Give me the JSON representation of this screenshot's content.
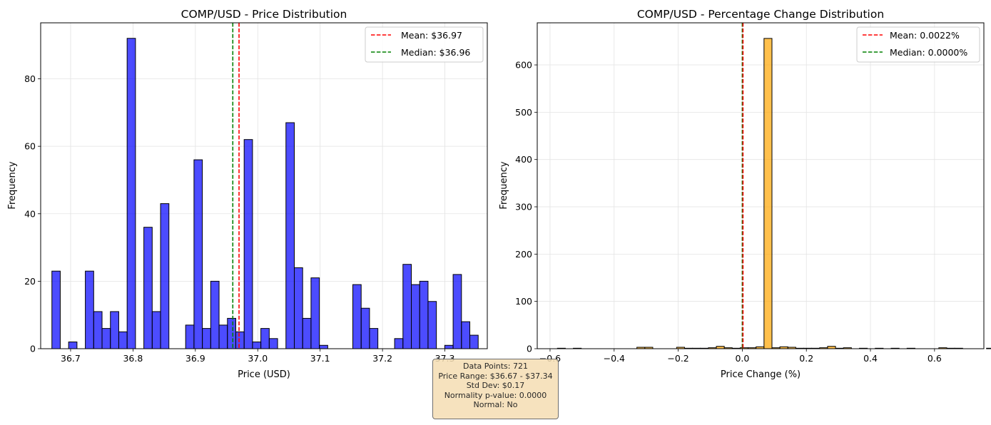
{
  "colors": {
    "left_bar": "#0000ff",
    "right_bar": "#ffa500",
    "edge": "#000000",
    "mean": "#ff0000",
    "median": "#008000",
    "grid": "#e3e3e3"
  },
  "chart_data": [
    {
      "type": "bar",
      "title": "COMP/USD - Price Distribution",
      "xlabel": "Price (USD)",
      "ylabel": "Frequency",
      "xlim": [
        36.652,
        37.368
      ],
      "ylim": [
        0,
        96.6
      ],
      "xticks": [
        "36.7",
        "36.8",
        "36.9",
        "37.0",
        "37.1",
        "37.2",
        "37.3"
      ],
      "yticks": [
        "0",
        "20",
        "40",
        "60",
        "80"
      ],
      "bin_width": 0.0134,
      "bin_start": 36.67,
      "counts": [
        23,
        0,
        2,
        0,
        23,
        11,
        6,
        11,
        5,
        92,
        0,
        36,
        11,
        43,
        0,
        0,
        7,
        56,
        6,
        20,
        7,
        9,
        5,
        62,
        2,
        6,
        3,
        0,
        67,
        24,
        9,
        21,
        1,
        0,
        0,
        0,
        19,
        12,
        6,
        0,
        0,
        3,
        25,
        19,
        20,
        14,
        0,
        1,
        22,
        8,
        4
      ],
      "mean": 36.97,
      "median": 36.96,
      "legend": {
        "placement": "upper-right",
        "mean_label": "Mean: $36.97",
        "median_label": "Median: $36.96"
      },
      "grid": true
    },
    {
      "type": "bar",
      "title": "COMP/USD - Percentage Change Distribution",
      "xlabel": "Price Change (%)",
      "ylabel": "Frequency",
      "xlim": [
        -0.64,
        0.754
      ],
      "ylim": [
        0,
        689
      ],
      "xticks": [
        "−0.6",
        "−0.4",
        "−0.2",
        "0.0",
        "0.2",
        "0.4",
        "0.6"
      ],
      "yticks": [
        "0",
        "100",
        "200",
        "300",
        "400",
        "500",
        "600"
      ],
      "bin_width": 0.0248,
      "bin_start": -0.577,
      "counts": [
        1,
        0,
        1,
        0,
        0,
        0,
        0,
        0,
        0,
        0,
        3,
        3,
        0,
        0,
        0,
        3,
        1,
        1,
        1,
        2,
        5,
        2,
        1,
        2,
        2,
        4,
        656,
        2,
        4,
        3,
        1,
        1,
        1,
        2,
        5,
        1,
        2,
        0,
        1,
        0,
        1,
        0,
        1,
        0,
        1,
        0,
        0,
        0,
        2,
        1,
        1,
        0,
        0,
        0,
        1,
        0,
        0,
        1
      ],
      "mean": 0.0022,
      "median": 0.0,
      "legend": {
        "placement": "upper-right",
        "mean_label": "Mean: 0.0022%",
        "median_label": "Median: 0.0000%"
      },
      "grid": true
    }
  ],
  "stats_box": {
    "line1": "Data Points: 721",
    "line2": "Price Range: $36.67 - $37.34",
    "line3": "Std Dev: $0.17",
    "line4": "Normality p-value: 0.0000",
    "line5": "Normal: No"
  }
}
